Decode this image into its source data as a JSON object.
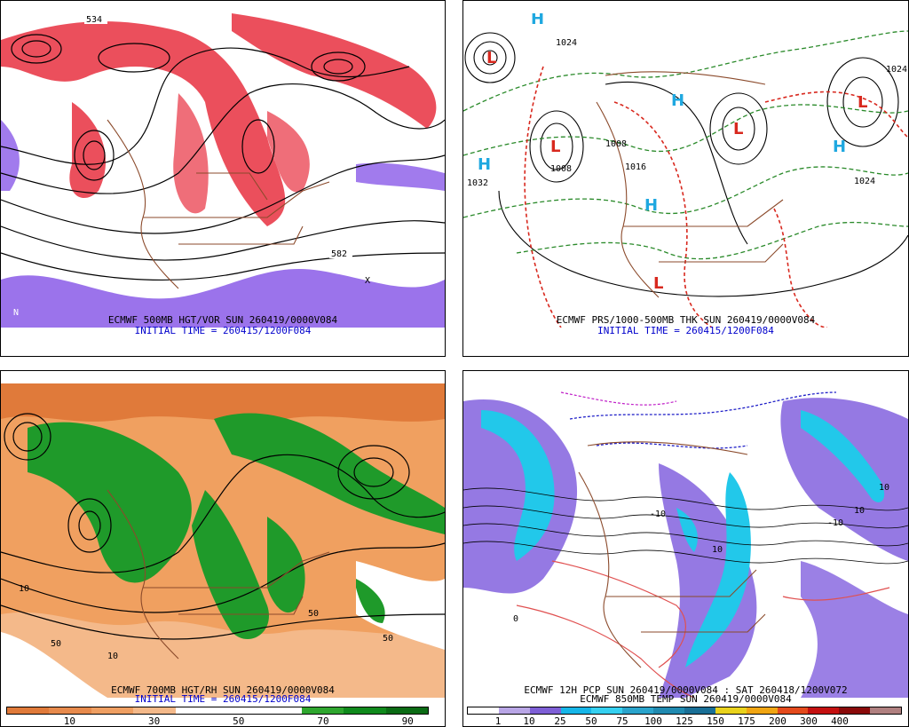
{
  "panels": [
    {
      "id": "tl",
      "caption1": "ECMWF 500MB HGT/VOR SUN 260419/0000V084",
      "caption2": "INITIAL TIME = 260415/1200F084",
      "contour_labels": [
        "534",
        "582"
      ],
      "letters": [
        "X",
        "N"
      ]
    },
    {
      "id": "tr",
      "caption1": "ECMWF PRS/1000-500MB THK SUN 260419/0000V084",
      "caption2": "INITIAL TIME = 260415/1200F084",
      "contour_labels": [
        "1032",
        "1008",
        "1024",
        "1016",
        "1008",
        "1024",
        "1024"
      ],
      "letters": [
        "H",
        "L"
      ]
    },
    {
      "id": "bl",
      "caption1": "ECMWF 700MB HGT/RH SUN 260419/0000V084",
      "caption2": "INITIAL TIME = 260415/1200F084",
      "contour_labels": [
        "10",
        "50",
        "50",
        "10",
        "50"
      ],
      "legend": {
        "colors": [
          "#e07a3a",
          "#e78a4c",
          "#ef9f62",
          "#f4b98a",
          "#ffffff",
          "#ffffff",
          "#ffffff",
          "#2ea62e",
          "#0f8a1c",
          "#0a6b14"
        ],
        "ticks": [
          "10",
          "30",
          "50",
          "70",
          "90"
        ]
      }
    },
    {
      "id": "br",
      "caption1": "ECMWF 12H PCP SUN 260419/0000V084 : SAT 260418/1200V072",
      "caption2": "ECMWF 850MB TEMP SUN 260419/0000V084",
      "contour_labels": [
        "10",
        "10",
        "-10",
        "0",
        "10",
        "-10"
      ],
      "legend": {
        "colors": [
          "#ffffff",
          "#b9a6e6",
          "#7e5fd6",
          "#16b6e8",
          "#35d0f0",
          "#2aa4cc",
          "#208ab0",
          "#196f96",
          "#e9d21c",
          "#f0a512",
          "#e44a1c",
          "#c41010",
          "#8a0a0a",
          "#b08080"
        ],
        "ticks": [
          "1",
          "10",
          "25",
          "50",
          "75",
          "100",
          "125",
          "150",
          "175",
          "200",
          "300",
          "400"
        ]
      }
    }
  ]
}
